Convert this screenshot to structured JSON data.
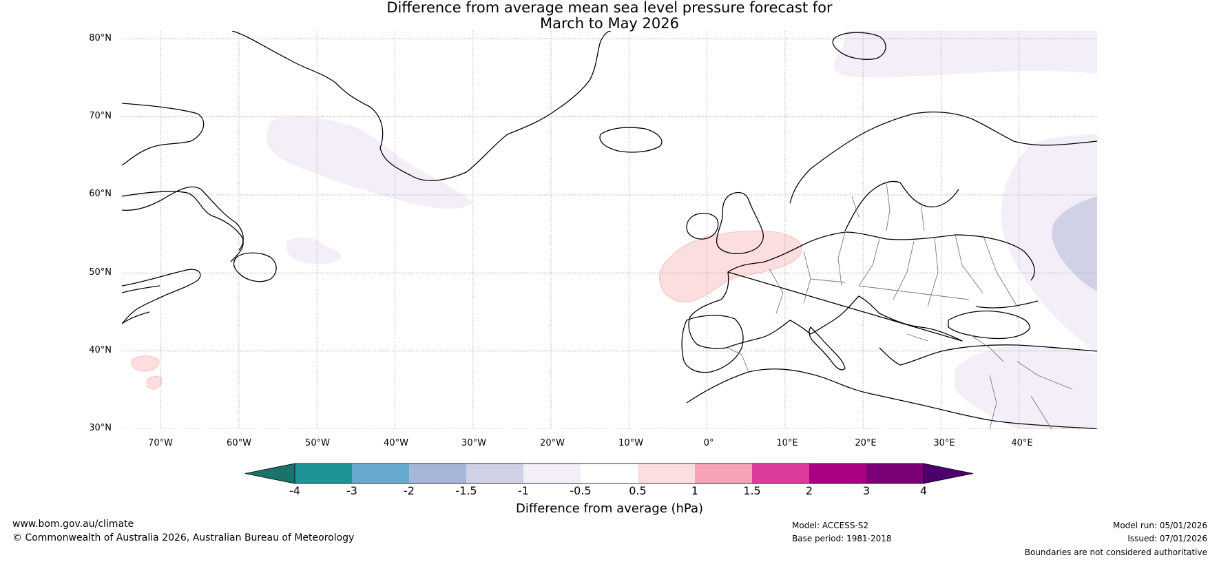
{
  "title": {
    "line1": "Difference from average mean sea level pressure forecast for",
    "line2": "March to May 2026"
  },
  "latitudes": [
    "80°N",
    "70°N",
    "60°N",
    "50°N",
    "40°N",
    "30°N"
  ],
  "longitudes": [
    "70°W",
    "60°W",
    "50°W",
    "40°W",
    "30°W",
    "20°W",
    "10°W",
    "0°",
    "10°E",
    "20°E",
    "30°E",
    "40°E"
  ],
  "map_extent": {
    "lon_min": -75,
    "lon_max": 50,
    "lat_min": 30,
    "lat_max": 81
  },
  "anomaly_regions": [
    {
      "name": "nw-atlantic-below",
      "category": "-1 to -0.5"
    },
    {
      "name": "arctic-north-below",
      "category": "-1 to -0.5"
    },
    {
      "name": "eastern-europe-below",
      "category": "-1 to -0.5"
    },
    {
      "name": "russia-west-below-strong",
      "category": "-1.5 to -1"
    },
    {
      "name": "france-above",
      "category": "0.5 to 1"
    },
    {
      "name": "azores-above",
      "category": "0.5 to 1"
    }
  ],
  "colorbar": {
    "ticks": [
      "-4",
      "-3",
      "-2",
      "-1.5",
      "-1",
      "-0.5",
      "0.5",
      "1",
      "1.5",
      "2",
      "3",
      "4"
    ],
    "colors": [
      "#17736b",
      "#1e9499",
      "#66aacf",
      "#a6b6d9",
      "#d1d1e6",
      "#f3eef7",
      "#ffffff",
      "#fddede",
      "#f8a2b8",
      "#de3c9c",
      "#aa0082",
      "#7b0077",
      "#4c006b"
    ],
    "label": "Difference from average (hPa)"
  },
  "footer": {
    "website": "www.bom.gov.au/climate",
    "copyright": "© Commonwealth of Australia 2026, Australian Bureau of Meteorology",
    "model": "Model: ACCESS-S2",
    "base_period": "Base period: 1981-2018",
    "model_run": "Model run: 05/01/2026",
    "issued": "Issued: 07/01/2026",
    "disclaimer": "Boundaries are not considered authoritative"
  }
}
